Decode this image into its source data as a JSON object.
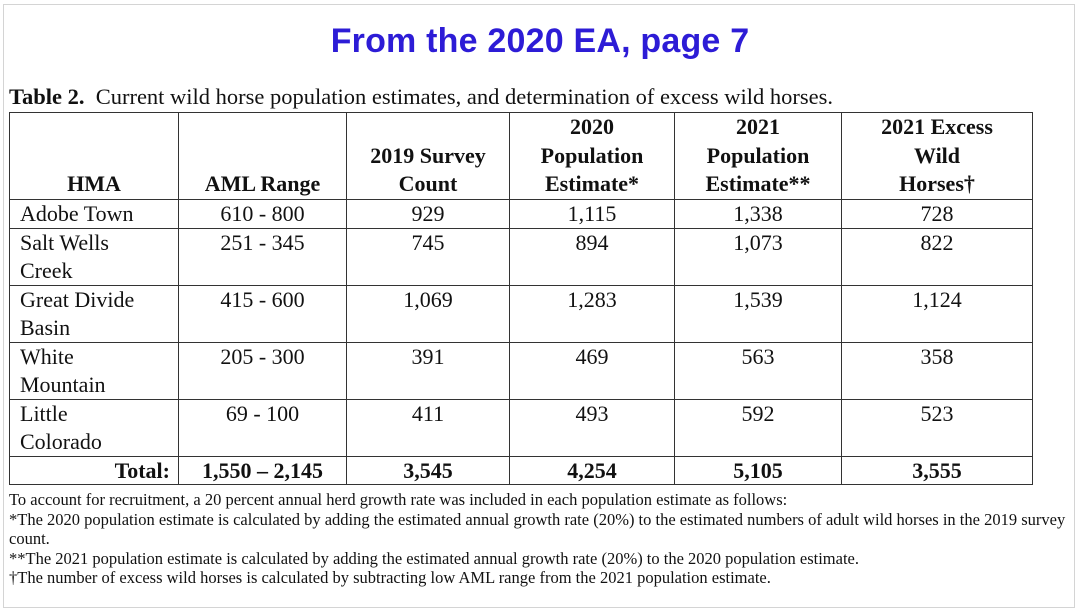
{
  "banner": "From the 2020 EA, page 7",
  "caption": {
    "label": "Table 2.",
    "text": "Current wild horse population estimates, and determination of excess wild horses."
  },
  "table": {
    "headers": {
      "hma": "HMA",
      "aml": "AML Range",
      "survey_l1": "2019 Survey",
      "survey_l2": "Count",
      "pop2020_l1": "2020",
      "pop2020_l2": "Population",
      "pop2020_l3": "Estimate*",
      "pop2021_l1": "2021",
      "pop2021_l2": "Population",
      "pop2021_l3": "Estimate**",
      "excess_l1": "2021 Excess",
      "excess_l2": "Wild",
      "excess_l3": "Horses†"
    },
    "rows": [
      {
        "hma_l1": "Adobe Town",
        "hma_l2": "",
        "aml": "610 - 800",
        "survey": "929",
        "pop2020": "1,115",
        "pop2021": "1,338",
        "excess": "728"
      },
      {
        "hma_l1": "Salt Wells",
        "hma_l2": "Creek",
        "aml": "251 - 345",
        "survey": "745",
        "pop2020": "894",
        "pop2021": "1,073",
        "excess": "822"
      },
      {
        "hma_l1": "Great Divide",
        "hma_l2": "Basin",
        "aml": "415 - 600",
        "survey": "1,069",
        "pop2020": "1,283",
        "pop2021": "1,539",
        "excess": "1,124"
      },
      {
        "hma_l1": "White",
        "hma_l2": "Mountain",
        "aml": "205 - 300",
        "survey": "391",
        "pop2020": "469",
        "pop2021": "563",
        "excess": "358"
      },
      {
        "hma_l1": "Little",
        "hma_l2": "Colorado",
        "aml": "69 - 100",
        "survey": "411",
        "pop2020": "493",
        "pop2021": "592",
        "excess": "523"
      }
    ],
    "total": {
      "label": "Total:",
      "aml": "1,550 – 2,145",
      "survey": "3,545",
      "pop2020": "4,254",
      "pop2021": "5,105",
      "excess": "3,555"
    }
  },
  "notes": {
    "intro": "To account for recruitment, a 20 percent annual herd growth rate was included in each population estimate as follows:",
    "n1": "*The 2020 population estimate is calculated by adding the estimated annual growth rate (20%) to the estimated numbers of adult wild horses in the 2019 survey count.",
    "n2": "**The 2021 population estimate is calculated by adding the estimated annual growth rate (20%) to the 2020 population estimate.",
    "n3": "†The number of excess wild horses is calculated by subtracting low AML range from the 2021 population estimate."
  }
}
